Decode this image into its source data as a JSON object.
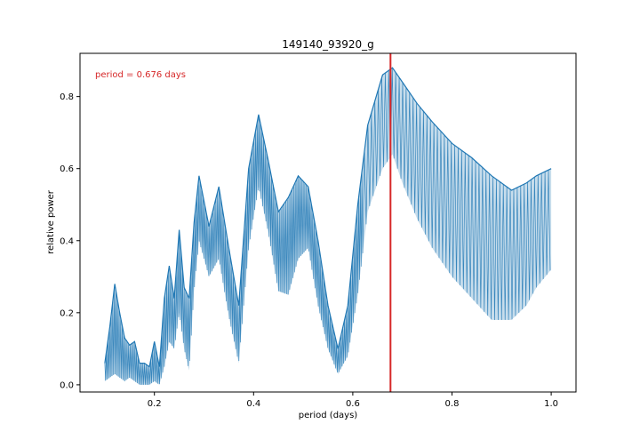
{
  "chart_data": {
    "type": "line",
    "title": "149140_93920_g",
    "xlabel": "period (days)",
    "ylabel": "relative power",
    "xlim": [
      0.05,
      1.05
    ],
    "ylim": [
      -0.02,
      0.92
    ],
    "xticks": [
      0.2,
      0.4,
      0.6,
      0.8,
      1.0
    ],
    "xtick_labels": [
      "0.2",
      "0.4",
      "0.6",
      "0.8",
      "1.0"
    ],
    "yticks": [
      0.0,
      0.2,
      0.4,
      0.6,
      0.8
    ],
    "ytick_labels": [
      "0.0",
      "0.2",
      "0.4",
      "0.6",
      "0.8"
    ],
    "grid": false,
    "series_color": "#1f77b4",
    "marker_color": "#d62728",
    "best_period": 0.676,
    "annotation": "period = 0.676 days",
    "envelope_upper": [
      [
        0.1,
        0.06
      ],
      [
        0.11,
        0.16
      ],
      [
        0.12,
        0.28
      ],
      [
        0.13,
        0.2
      ],
      [
        0.14,
        0.13
      ],
      [
        0.15,
        0.11
      ],
      [
        0.16,
        0.12
      ],
      [
        0.17,
        0.06
      ],
      [
        0.18,
        0.06
      ],
      [
        0.19,
        0.05
      ],
      [
        0.2,
        0.12
      ],
      [
        0.21,
        0.05
      ],
      [
        0.22,
        0.24
      ],
      [
        0.23,
        0.33
      ],
      [
        0.24,
        0.24
      ],
      [
        0.25,
        0.43
      ],
      [
        0.26,
        0.27
      ],
      [
        0.27,
        0.24
      ],
      [
        0.28,
        0.45
      ],
      [
        0.29,
        0.58
      ],
      [
        0.31,
        0.44
      ],
      [
        0.33,
        0.55
      ],
      [
        0.35,
        0.38
      ],
      [
        0.37,
        0.22
      ],
      [
        0.39,
        0.6
      ],
      [
        0.41,
        0.75
      ],
      [
        0.43,
        0.62
      ],
      [
        0.45,
        0.48
      ],
      [
        0.47,
        0.52
      ],
      [
        0.49,
        0.58
      ],
      [
        0.51,
        0.55
      ],
      [
        0.53,
        0.4
      ],
      [
        0.55,
        0.22
      ],
      [
        0.57,
        0.1
      ],
      [
        0.59,
        0.22
      ],
      [
        0.61,
        0.5
      ],
      [
        0.63,
        0.72
      ],
      [
        0.66,
        0.86
      ],
      [
        0.68,
        0.88
      ],
      [
        0.7,
        0.84
      ],
      [
        0.73,
        0.78
      ],
      [
        0.76,
        0.73
      ],
      [
        0.8,
        0.67
      ],
      [
        0.84,
        0.63
      ],
      [
        0.88,
        0.58
      ],
      [
        0.92,
        0.54
      ],
      [
        0.95,
        0.56
      ],
      [
        0.97,
        0.58
      ],
      [
        1.0,
        0.6
      ]
    ],
    "envelope_lower": [
      [
        0.1,
        0.01
      ],
      [
        0.11,
        0.02
      ],
      [
        0.12,
        0.03
      ],
      [
        0.13,
        0.02
      ],
      [
        0.14,
        0.01
      ],
      [
        0.15,
        0.02
      ],
      [
        0.16,
        0.01
      ],
      [
        0.17,
        0.0
      ],
      [
        0.18,
        0.0
      ],
      [
        0.19,
        0.0
      ],
      [
        0.2,
        0.01
      ],
      [
        0.21,
        0.0
      ],
      [
        0.22,
        0.05
      ],
      [
        0.23,
        0.12
      ],
      [
        0.24,
        0.1
      ],
      [
        0.25,
        0.2
      ],
      [
        0.26,
        0.1
      ],
      [
        0.27,
        0.04
      ],
      [
        0.28,
        0.26
      ],
      [
        0.29,
        0.4
      ],
      [
        0.31,
        0.3
      ],
      [
        0.33,
        0.35
      ],
      [
        0.35,
        0.19
      ],
      [
        0.37,
        0.06
      ],
      [
        0.39,
        0.38
      ],
      [
        0.41,
        0.55
      ],
      [
        0.43,
        0.42
      ],
      [
        0.45,
        0.26
      ],
      [
        0.47,
        0.25
      ],
      [
        0.49,
        0.35
      ],
      [
        0.51,
        0.38
      ],
      [
        0.53,
        0.22
      ],
      [
        0.55,
        0.1
      ],
      [
        0.57,
        0.03
      ],
      [
        0.59,
        0.08
      ],
      [
        0.61,
        0.25
      ],
      [
        0.63,
        0.48
      ],
      [
        0.66,
        0.6
      ],
      [
        0.68,
        0.64
      ],
      [
        0.7,
        0.56
      ],
      [
        0.73,
        0.46
      ],
      [
        0.76,
        0.38
      ],
      [
        0.8,
        0.3
      ],
      [
        0.84,
        0.24
      ],
      [
        0.88,
        0.18
      ],
      [
        0.92,
        0.18
      ],
      [
        0.95,
        0.22
      ],
      [
        0.97,
        0.27
      ],
      [
        1.0,
        0.32
      ]
    ]
  }
}
